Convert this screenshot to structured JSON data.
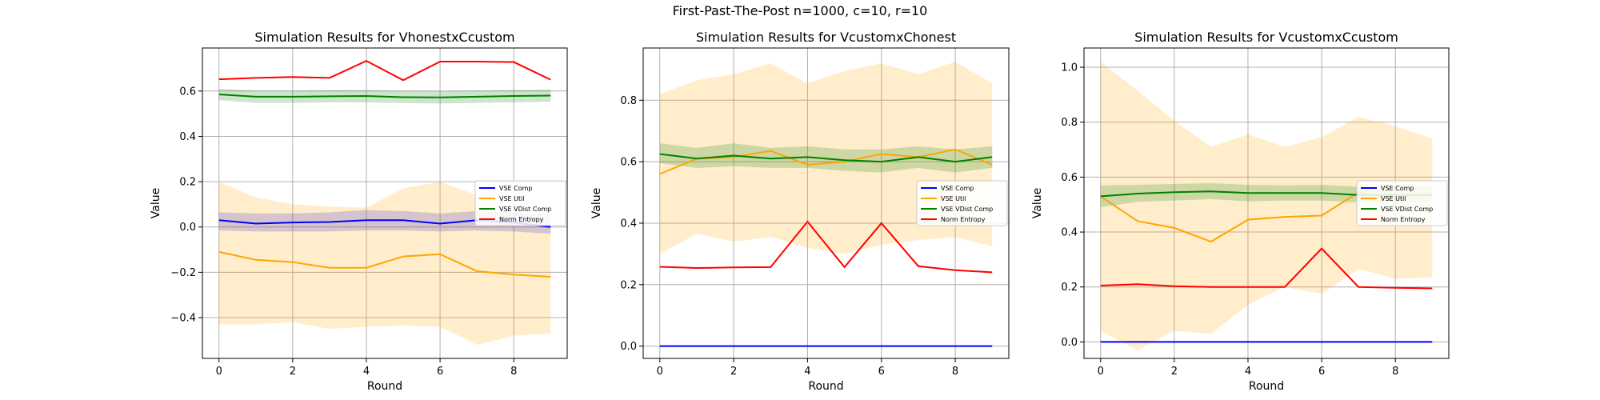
{
  "suptitle": "First-Past-The-Post n=1000, c=10, r=10",
  "colors": {
    "VSE Comp": "#0000ff",
    "VSE Util": "#ffa500",
    "VSE VDist Comp": "#008000",
    "Norm Entropy": "#ff0000"
  },
  "chart_data": [
    {
      "type": "line",
      "title": "Simulation Results for VhonestxCcustom",
      "xlabel": "Round",
      "ylabel": "Value",
      "xlim": [
        -0.45,
        9.45
      ],
      "ylim": [
        -0.58,
        0.79
      ],
      "xticks": [
        0,
        2,
        4,
        6,
        8
      ],
      "yticks": [
        -0.4,
        -0.2,
        0.0,
        0.2,
        0.4,
        0.6
      ],
      "ytick_labels": [
        "−0.4",
        "−0.2",
        "0.0",
        "0.2",
        "0.4",
        "0.6"
      ],
      "grid": true,
      "legend": "right",
      "x": [
        0,
        1,
        2,
        3,
        4,
        5,
        6,
        7,
        8,
        9
      ],
      "series": [
        {
          "name": "VSE Comp",
          "values": [
            0.03,
            0.015,
            0.02,
            0.022,
            0.03,
            0.03,
            0.015,
            0.03,
            0.02,
            0.0
          ],
          "lower": [
            -0.015,
            -0.02,
            -0.02,
            -0.02,
            -0.015,
            -0.015,
            -0.02,
            -0.015,
            -0.02,
            -0.03
          ],
          "upper": [
            0.065,
            0.06,
            0.06,
            0.065,
            0.075,
            0.07,
            0.06,
            0.07,
            0.065,
            0.06
          ]
        },
        {
          "name": "VSE Util",
          "values": [
            -0.11,
            -0.145,
            -0.155,
            -0.18,
            -0.18,
            -0.13,
            -0.12,
            -0.195,
            -0.21,
            -0.22
          ],
          "lower": [
            -0.43,
            -0.43,
            -0.42,
            -0.45,
            -0.44,
            -0.435,
            -0.44,
            -0.52,
            -0.48,
            -0.47
          ],
          "upper": [
            0.2,
            0.13,
            0.1,
            0.09,
            0.085,
            0.17,
            0.2,
            0.14,
            0.06,
            0.03
          ]
        },
        {
          "name": "VSE VDist Comp",
          "values": [
            0.585,
            0.575,
            0.575,
            0.577,
            0.578,
            0.573,
            0.572,
            0.575,
            0.578,
            0.58
          ],
          "lower": [
            0.56,
            0.548,
            0.548,
            0.55,
            0.55,
            0.547,
            0.545,
            0.548,
            0.55,
            0.553
          ],
          "upper": [
            0.61,
            0.602,
            0.602,
            0.604,
            0.605,
            0.6,
            0.6,
            0.602,
            0.605,
            0.607
          ]
        },
        {
          "name": "Norm Entropy",
          "values": [
            0.652,
            0.658,
            0.662,
            0.658,
            0.733,
            0.648,
            0.73,
            0.73,
            0.728,
            0.65
          ]
        }
      ]
    },
    {
      "type": "line",
      "title": "Simulation Results for VcustomxChonest",
      "xlabel": "Round",
      "ylabel": "Value",
      "xlim": [
        -0.45,
        9.45
      ],
      "ylim": [
        -0.04,
        0.97
      ],
      "xticks": [
        0,
        2,
        4,
        6,
        8
      ],
      "yticks": [
        0.0,
        0.2,
        0.4,
        0.6,
        0.8
      ],
      "ytick_labels": [
        "0.0",
        "0.2",
        "0.4",
        "0.6",
        "0.8"
      ],
      "grid": true,
      "legend": "right",
      "x": [
        0,
        1,
        2,
        3,
        4,
        5,
        6,
        7,
        8,
        9
      ],
      "series": [
        {
          "name": "VSE Comp",
          "values": [
            0,
            0,
            0,
            0,
            0,
            0,
            0,
            0,
            0,
            0
          ]
        },
        {
          "name": "VSE Util",
          "values": [
            0.56,
            0.61,
            0.615,
            0.635,
            0.59,
            0.6,
            0.625,
            0.615,
            0.64,
            0.59
          ],
          "lower": [
            0.3,
            0.365,
            0.34,
            0.355,
            0.32,
            0.3,
            0.33,
            0.345,
            0.355,
            0.325
          ],
          "upper": [
            0.82,
            0.865,
            0.885,
            0.92,
            0.855,
            0.895,
            0.92,
            0.885,
            0.925,
            0.855
          ]
        },
        {
          "name": "VSE VDist Comp",
          "values": [
            0.625,
            0.61,
            0.62,
            0.61,
            0.615,
            0.605,
            0.6,
            0.615,
            0.6,
            0.615
          ],
          "lower": [
            0.595,
            0.58,
            0.585,
            0.58,
            0.58,
            0.57,
            0.565,
            0.58,
            0.565,
            0.58
          ],
          "upper": [
            0.66,
            0.645,
            0.66,
            0.645,
            0.65,
            0.64,
            0.64,
            0.65,
            0.64,
            0.65
          ]
        },
        {
          "name": "Norm Entropy",
          "values": [
            0.258,
            0.254,
            0.256,
            0.257,
            0.405,
            0.257,
            0.4,
            0.26,
            0.247,
            0.24
          ]
        }
      ]
    },
    {
      "type": "line",
      "title": "Simulation Results for VcustomxCcustom",
      "xlabel": "Round",
      "ylabel": "Value",
      "xlim": [
        -0.45,
        9.45
      ],
      "ylim": [
        -0.06,
        1.07
      ],
      "xticks": [
        0,
        2,
        4,
        6,
        8
      ],
      "yticks": [
        0.0,
        0.2,
        0.4,
        0.6,
        0.8,
        1.0
      ],
      "ytick_labels": [
        "0.0",
        "0.2",
        "0.4",
        "0.6",
        "0.8",
        "1.0"
      ],
      "grid": true,
      "legend": "right",
      "x": [
        0,
        1,
        2,
        3,
        4,
        5,
        6,
        7,
        8,
        9
      ],
      "series": [
        {
          "name": "VSE Comp",
          "values": [
            0,
            0,
            0,
            0,
            0,
            0,
            0,
            0,
            0,
            0
          ]
        },
        {
          "name": "VSE Util",
          "values": [
            0.53,
            0.44,
            0.415,
            0.365,
            0.445,
            0.455,
            0.46,
            0.545,
            0.52,
            0.54
          ],
          "lower": [
            0.04,
            -0.03,
            0.04,
            0.03,
            0.135,
            0.2,
            0.175,
            0.265,
            0.23,
            0.235
          ],
          "upper": [
            1.02,
            0.915,
            0.805,
            0.71,
            0.755,
            0.71,
            0.745,
            0.82,
            0.785,
            0.74
          ]
        },
        {
          "name": "VSE VDist Comp",
          "values": [
            0.53,
            0.54,
            0.545,
            0.548,
            0.542,
            0.542,
            0.542,
            0.535,
            0.535,
            0.535
          ],
          "lower": [
            0.49,
            0.51,
            0.515,
            0.52,
            0.512,
            0.515,
            0.515,
            0.508,
            0.508,
            0.51
          ],
          "upper": [
            0.57,
            0.572,
            0.575,
            0.578,
            0.572,
            0.57,
            0.572,
            0.565,
            0.565,
            0.565
          ]
        },
        {
          "name": "Norm Entropy",
          "values": [
            0.205,
            0.21,
            0.203,
            0.2,
            0.2,
            0.2,
            0.34,
            0.2,
            0.197,
            0.195
          ]
        }
      ]
    }
  ]
}
